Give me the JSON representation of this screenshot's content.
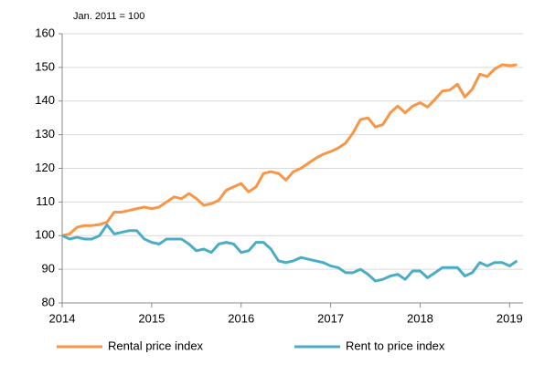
{
  "chart_data": {
    "type": "line",
    "annotation": "Jan. 2011 = 100",
    "x": [
      2014,
      2014.083,
      2014.167,
      2014.25,
      2014.333,
      2014.417,
      2014.5,
      2014.583,
      2014.667,
      2014.75,
      2014.833,
      2014.917,
      2015,
      2015.083,
      2015.167,
      2015.25,
      2015.333,
      2015.417,
      2015.5,
      2015.583,
      2015.667,
      2015.75,
      2015.833,
      2015.917,
      2016,
      2016.083,
      2016.167,
      2016.25,
      2016.333,
      2016.417,
      2016.5,
      2016.583,
      2016.667,
      2016.75,
      2016.833,
      2016.917,
      2017,
      2017.083,
      2017.167,
      2017.25,
      2017.333,
      2017.417,
      2017.5,
      2017.583,
      2017.667,
      2017.75,
      2017.833,
      2017.917,
      2018,
      2018.083,
      2018.167,
      2018.25,
      2018.333,
      2018.417,
      2018.5,
      2018.583,
      2018.667,
      2018.75,
      2018.833,
      2018.917,
      2019,
      2019.083
    ],
    "series": [
      {
        "name": "Rental price index",
        "color": "#f79646",
        "values": [
          100,
          100.5,
          102.5,
          103,
          103,
          103.3,
          104,
          107,
          107,
          107.5,
          108,
          108.5,
          108,
          108.5,
          110,
          111.5,
          111,
          112.5,
          111,
          109,
          109.5,
          110.5,
          113.5,
          114.5,
          115.5,
          113,
          114.5,
          118.5,
          119,
          118.5,
          116.5,
          119,
          120,
          121.5,
          123,
          124.2,
          125,
          126,
          127.5,
          130.5,
          134.5,
          135,
          132.3,
          133,
          136.5,
          138.5,
          136.5,
          138.5,
          139.5,
          138.2,
          140.5,
          143,
          143.3,
          145,
          141.2,
          143.5,
          148,
          147.3,
          149.5,
          150.8,
          150.5,
          150.8
        ]
      },
      {
        "name": "Rent to price index",
        "color": "#4bacc6",
        "values": [
          100,
          99,
          99.5,
          99,
          99,
          100,
          103.2,
          100.5,
          101,
          101.5,
          101.5,
          99,
          98,
          97.5,
          99,
          99,
          99,
          97.5,
          95.5,
          96,
          95,
          97.5,
          98,
          97.5,
          95,
          95.5,
          98,
          98,
          96,
          92.5,
          92,
          92.5,
          93.5,
          93,
          92.5,
          92,
          91,
          90.5,
          89,
          89,
          90,
          88.5,
          86.5,
          87,
          88,
          88.5,
          87,
          89.5,
          89.5,
          87.5,
          89,
          90.5,
          90.5,
          90.5,
          88,
          89,
          92,
          91,
          92,
          92,
          91,
          92.5
        ]
      }
    ],
    "xlim": [
      2014,
      2019.15
    ],
    "xticks": [
      2014,
      2015,
      2016,
      2017,
      2018,
      2019
    ],
    "ylim": [
      80,
      160
    ],
    "yticks": [
      80,
      90,
      100,
      110,
      120,
      130,
      140,
      150,
      160
    ],
    "grid": true,
    "legend": "bottom"
  }
}
